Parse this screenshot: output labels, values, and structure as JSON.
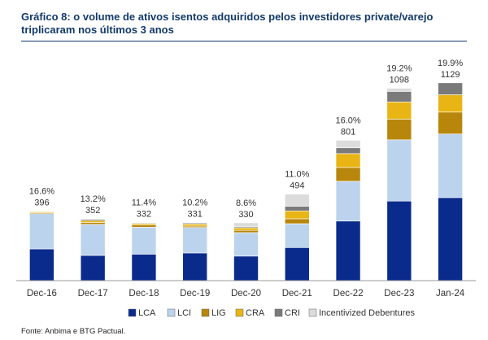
{
  "title": "Gráfico 8: o volume de ativos isentos adquiridos pelos investidores private/varejo triplicaram nos últimos 3 anos",
  "source": "Fonte: Anbima e BTG Pactual.",
  "colors": {
    "LCA": "#0a2b8c",
    "LCI": "#bcd3ee",
    "LIG": "#b8860b",
    "CRA": "#e8b515",
    "CRI": "#7a7a7a",
    "Incentivized Debentures": "#dcdcdc",
    "axis": "#999999",
    "text": "#333333"
  },
  "chart_data": {
    "type": "bar",
    "stacked": true,
    "categories": [
      "Dec-16",
      "Dec-17",
      "Dec-18",
      "Dec-19",
      "Dec-20",
      "Dec-21",
      "Dec-22",
      "Dec-23",
      "Jan-24"
    ],
    "totals": [
      396,
      352,
      332,
      331,
      330,
      494,
      801,
      1098,
      1129
    ],
    "percent_labels": [
      "16.6%",
      "13.2%",
      "11.4%",
      "10.2%",
      "8.6%",
      "11.0%",
      "16.0%",
      "19.2%",
      "19.9%"
    ],
    "series": [
      {
        "name": "LCA",
        "values": [
          181,
          144,
          151,
          158,
          140,
          189,
          340,
          454,
          474
        ]
      },
      {
        "name": "LCI",
        "values": [
          201,
          177,
          154,
          145,
          134,
          136,
          227,
          350,
          363
        ]
      },
      {
        "name": "LIG",
        "values": [
          5,
          11,
          13,
          8,
          13,
          28,
          79,
          118,
          125
        ]
      },
      {
        "name": "CRA",
        "values": [
          6,
          11,
          8,
          12,
          14,
          45,
          79,
          98,
          99
        ]
      },
      {
        "name": "CRI",
        "values": [
          3,
          7,
          4,
          6,
          6,
          26,
          33,
          60,
          68
        ]
      },
      {
        "name": "Incentivized Debentures",
        "values": [
          0,
          2,
          2,
          2,
          23,
          70,
          43,
          18,
          0
        ]
      }
    ],
    "ylim": [
      0,
      1300
    ],
    "xlabel": "",
    "ylabel": "",
    "legend": "bottom",
    "grid": false
  }
}
